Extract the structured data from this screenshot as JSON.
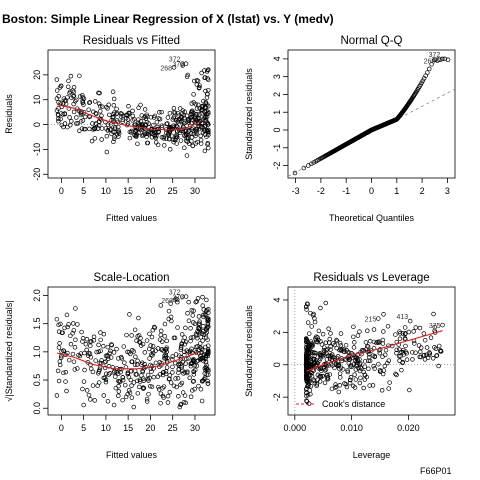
{
  "figure": {
    "suptitle": "Boston: Simple Linear Regression of X (lstat) vs. Y (medv)",
    "footer": "F66P01"
  },
  "chart_data": [
    {
      "type": "scatter",
      "title": "Residuals vs Fitted",
      "xlabel": "Fitted values",
      "ylabel": "Residuals",
      "xlim": [
        -3,
        34.5
      ],
      "ylim": [
        -21.5,
        30
      ],
      "xticks": [
        0,
        5,
        10,
        15,
        20,
        25,
        30
      ],
      "yticks": [
        -20,
        -10,
        0,
        10,
        20
      ],
      "reference_line": {
        "y": 0,
        "style": "dotted",
        "color": "#888888"
      },
      "smooth_line": {
        "color": "#e41a1c",
        "x": [
          -1,
          3,
          6,
          10,
          15,
          20,
          25,
          28,
          31
        ],
        "y": [
          8,
          6.5,
          4.2,
          1.5,
          -0.5,
          -1.8,
          -2.2,
          -1.5,
          1
        ]
      },
      "labeled_points": [
        {
          "label": "268",
          "x": 25.3,
          "y": 23
        },
        {
          "label": "372",
          "x": 27.2,
          "y": 24.5
        },
        {
          "label": "373",
          "x": 28.0,
          "y": 24.5
        }
      ],
      "points": {
        "n": 506,
        "seed": 11,
        "marker": "open-circle"
      }
    },
    {
      "type": "scatter",
      "title": "Normal Q-Q",
      "xlabel": "Theoretical Quantiles",
      "ylabel": "Standardized residuals",
      "xlim": [
        -3.3,
        3.3
      ],
      "ylim": [
        -2.7,
        4.5
      ],
      "xticks": [
        -3,
        -2,
        -1,
        0,
        1,
        2,
        3
      ],
      "yticks": [
        -2,
        -1,
        0,
        1,
        2,
        3,
        4
      ],
      "reference_line": {
        "type": "diagonal",
        "style": "dashed",
        "color": "#888888",
        "x": [
          -3.3,
          3.3
        ],
        "y": [
          -2.6,
          2.3
        ]
      },
      "labeled_points": [
        {
          "label": "268",
          "x": 2.6,
          "y": 3.9
        },
        {
          "label": "372",
          "x": 2.8,
          "y": 4.0
        },
        {
          "label": "373",
          "x": 2.9,
          "y": 4.0
        }
      ],
      "points": {
        "n": 400,
        "seed": 5,
        "marker": "open-circle"
      }
    },
    {
      "type": "scatter",
      "title": "Scale-Location",
      "xlabel": "Fitted values",
      "ylabel": "√|Standardized residuals|",
      "xlim": [
        -3,
        34.5
      ],
      "ylim": [
        -0.12,
        2.15
      ],
      "xticks": [
        0,
        5,
        10,
        15,
        20,
        25,
        30
      ],
      "yticks": [
        0.0,
        0.5,
        1.0,
        1.5,
        2.0
      ],
      "ytick_labels": [
        "0.0",
        "0.5",
        "1.0",
        "1.5",
        "2.0"
      ],
      "smooth_line": {
        "color": "#e41a1c",
        "x": [
          -1,
          3,
          7,
          12,
          17,
          22,
          27,
          31
        ],
        "y": [
          0.98,
          0.9,
          0.78,
          0.7,
          0.7,
          0.75,
          0.88,
          1.0
        ]
      },
      "labeled_points": [
        {
          "label": "268",
          "x": 25.5,
          "y": 1.92
        },
        {
          "label": "372",
          "x": 27.2,
          "y": 1.98
        },
        {
          "label": "373",
          "x": 28.0,
          "y": 1.98
        }
      ],
      "points": {
        "n": 506,
        "seed": 23,
        "marker": "open-circle"
      }
    },
    {
      "type": "scatter",
      "title": "Residuals vs Leverage",
      "xlabel": "Leverage",
      "ylabel": "Standardized residuals",
      "xlim": [
        -0.0012,
        0.0282
      ],
      "ylim": [
        -3.1,
        4.8
      ],
      "xticks": [
        0.0,
        0.01,
        0.02
      ],
      "xtick_labels": [
        "0.000",
        "0.010",
        "0.020"
      ],
      "yticks": [
        -2,
        0,
        2,
        4
      ],
      "reference_line": {
        "y": 0,
        "style": "dotted",
        "color": "#888888"
      },
      "vertical_reference": {
        "x": 0,
        "style": "dotted",
        "color": "#888888"
      },
      "smooth_line": {
        "color": "#e41a1c",
        "x": [
          0.002,
          0.005,
          0.01,
          0.015,
          0.02,
          0.026
        ],
        "y": [
          -0.4,
          0.0,
          0.6,
          1.0,
          1.5,
          2.1
        ]
      },
      "labeled_points": [
        {
          "label": "215",
          "x": 0.0147,
          "y": 2.85
        },
        {
          "label": "413",
          "x": 0.0203,
          "y": 2.7
        },
        {
          "label": "375",
          "x": 0.026,
          "y": 2.45
        }
      ],
      "legend": {
        "label": "Cook's distance",
        "placement": "bottom-left",
        "line_style": "dashed",
        "color": "#e41a1c"
      },
      "points": {
        "n": 506,
        "seed": 31,
        "marker": "open-circle"
      }
    }
  ]
}
